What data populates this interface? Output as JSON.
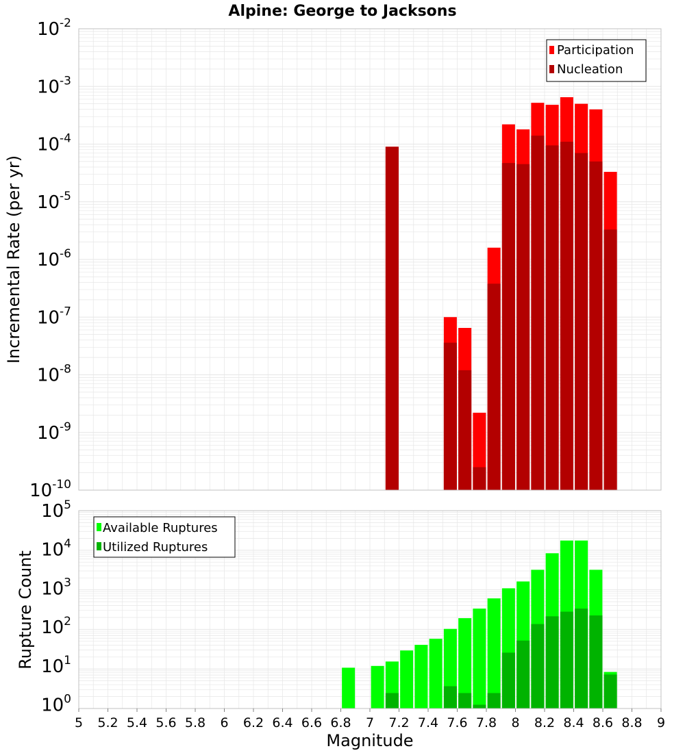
{
  "title": "Alpine: George to Jacksons",
  "colors": {
    "participation": "#ff0000",
    "nucleation": "#b30000",
    "available": "#00ff00",
    "utilized": "#00b300",
    "grid": "#e6e6e6",
    "axis_border": "#c0c0c0"
  },
  "chart_data": [
    {
      "type": "bar",
      "panel": "top",
      "ylabel": "Incremental Rate (per yr)",
      "yscale": "log",
      "ylim": [
        1e-10,
        0.01
      ],
      "xlim": [
        5,
        9
      ],
      "ytick_labels": [
        {
          "exp": -10,
          "base": "10",
          "sup": "-10"
        },
        {
          "exp": -9,
          "base": "10",
          "sup": "-9"
        },
        {
          "exp": -8,
          "base": "10",
          "sup": "-8"
        },
        {
          "exp": -7,
          "base": "10",
          "sup": "-7"
        },
        {
          "exp": -6,
          "base": "10",
          "sup": "-6"
        },
        {
          "exp": -5,
          "base": "10",
          "sup": "-5"
        },
        {
          "exp": -4,
          "base": "10",
          "sup": "-4"
        },
        {
          "exp": -3,
          "base": "10",
          "sup": "-3"
        },
        {
          "exp": -2,
          "base": "10",
          "sup": "-2"
        }
      ],
      "legend": {
        "position": "top-right",
        "entries": [
          "Participation",
          "Nucleation"
        ]
      },
      "series": [
        {
          "name": "Participation",
          "x": [
            7.15,
            7.55,
            7.65,
            7.75,
            7.85,
            7.95,
            8.05,
            8.15,
            8.25,
            8.35,
            8.45,
            8.55,
            8.65
          ],
          "values": [
            9e-05,
            1e-07,
            6.5e-08,
            2.2e-09,
            1.6e-06,
            0.00022,
            0.00018,
            0.00052,
            0.00048,
            0.00065,
            0.0005,
            0.0004,
            3.3e-05
          ]
        },
        {
          "name": "Nucleation",
          "x": [
            7.15,
            7.55,
            7.65,
            7.75,
            7.85,
            7.95,
            8.05,
            8.15,
            8.25,
            8.35,
            8.45,
            8.55,
            8.65
          ],
          "values": [
            9e-05,
            3.6e-08,
            1.2e-08,
            2.5e-10,
            3.8e-07,
            4.7e-05,
            4.5e-05,
            0.00014,
            9.5e-05,
            0.00011,
            7e-05,
            5e-05,
            3.3e-06
          ]
        }
      ]
    },
    {
      "type": "bar",
      "panel": "bottom",
      "ylabel": "Rupture Count",
      "xlabel": "Magnitude",
      "yscale": "log",
      "ylim": [
        0.8,
        100000
      ],
      "xlim": [
        5,
        9
      ],
      "xtick_labels": [
        "5",
        "5.2",
        "5.4",
        "5.6",
        "5.8",
        "6",
        "6.2",
        "6.4",
        "6.6",
        "6.8",
        "7",
        "7.2",
        "7.4",
        "7.6",
        "7.8",
        "8",
        "8.2",
        "8.4",
        "8.6",
        "8.8",
        "9"
      ],
      "ytick_labels": [
        {
          "exp": 0,
          "base": "10",
          "sup": "0"
        },
        {
          "exp": 1,
          "base": "10",
          "sup": "1"
        },
        {
          "exp": 2,
          "base": "10",
          "sup": "2"
        },
        {
          "exp": 3,
          "base": "10",
          "sup": "3"
        },
        {
          "exp": 4,
          "base": "10",
          "sup": "4"
        },
        {
          "exp": 5,
          "base": "10",
          "sup": "5"
        }
      ],
      "legend": {
        "position": "top-left",
        "entries": [
          "Available Ruptures",
          "Utilized Ruptures"
        ]
      },
      "series": [
        {
          "name": "Available Ruptures",
          "x": [
            6.85,
            7.05,
            7.15,
            7.25,
            7.35,
            7.45,
            7.55,
            7.65,
            7.75,
            7.85,
            7.95,
            8.05,
            8.15,
            8.25,
            8.35,
            8.45,
            8.55,
            8.65
          ],
          "values": [
            9,
            10,
            13,
            25,
            35,
            50,
            90,
            170,
            300,
            550,
            1000,
            1500,
            3000,
            8000,
            17000,
            17000,
            3000,
            7
          ]
        },
        {
          "name": "Utilized Ruptures",
          "x": [
            6.85,
            7.05,
            7.15,
            7.25,
            7.35,
            7.45,
            7.55,
            7.65,
            7.75,
            7.85,
            7.95,
            8.05,
            8.15,
            8.25,
            8.35,
            8.45,
            8.55,
            8.65
          ],
          "values": [
            0,
            0,
            2,
            0,
            0,
            0,
            3,
            2,
            1,
            2,
            22,
            45,
            120,
            190,
            250,
            300,
            200,
            6
          ]
        }
      ]
    }
  ]
}
